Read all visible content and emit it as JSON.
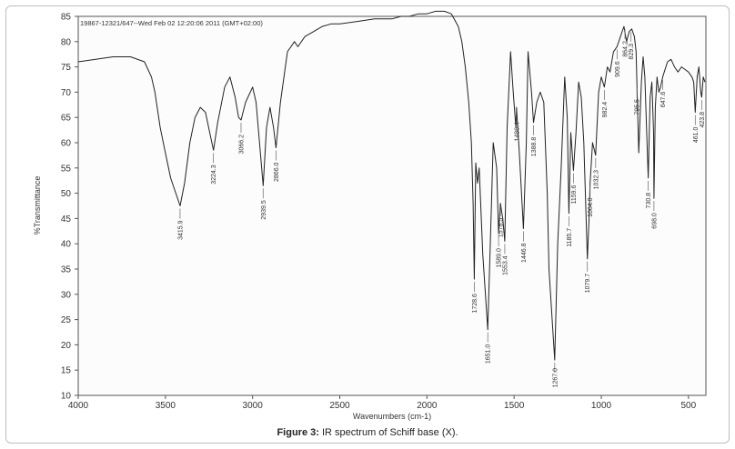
{
  "chart_data": {
    "type": "line",
    "header": "19867-12321/647--Wed Feb 02 12:20:06 2011 (GMT+02:00)",
    "xlabel": "Wavenumbers (cm-1)",
    "ylabel": "%Transmittance",
    "xlim": [
      4000,
      400
    ],
    "ylim": [
      10,
      85
    ],
    "x_ticks": [
      4000,
      3500,
      3000,
      2500,
      2000,
      1500,
      1000,
      500
    ],
    "y_ticks": [
      10,
      15,
      20,
      25,
      30,
      35,
      40,
      45,
      50,
      55,
      60,
      65,
      70,
      75,
      80,
      85
    ],
    "grid": false,
    "series": [
      {
        "x": [
          4000,
          3900,
          3800,
          3700,
          3620,
          3580,
          3560,
          3530,
          3500,
          3470,
          3440,
          3415.9,
          3390,
          3360,
          3330,
          3300,
          3270,
          3240,
          3224.3,
          3200,
          3160,
          3130,
          3100,
          3080,
          3066.2,
          3040,
          3000,
          2980,
          2960,
          2939.5,
          2920,
          2900,
          2880,
          2866.0,
          2840,
          2800,
          2760,
          2740,
          2700,
          2650,
          2600,
          2550,
          2500,
          2400,
          2300,
          2200,
          2150,
          2100,
          2050,
          2000,
          1950,
          1900,
          1860,
          1820,
          1800,
          1780,
          1760,
          1745,
          1735,
          1728.6,
          1720,
          1710,
          1700,
          1680,
          1651.0,
          1630,
          1620,
          1600,
          1589.0,
          1578.5,
          1565,
          1553.4,
          1540,
          1520,
          1505,
          1490,
          1486.4,
          1470,
          1446.8,
          1430,
          1420,
          1400,
          1388.8,
          1370,
          1350,
          1330,
          1310,
          1300,
          1267.0,
          1250,
          1230,
          1210,
          1195,
          1185.7,
          1175,
          1159.6,
          1145,
          1130,
          1115,
          1100,
          1079.7,
          1070,
          1064.0,
          1050,
          1032.3,
          1015,
          1000,
          982.4,
          965,
          950,
          930,
          909.6,
          890,
          870,
          855,
          840,
          825,
          810,
          800,
          795.5,
          785,
          770,
          760,
          750,
          730.8,
          720,
          710,
          700,
          698.0,
          690,
          680,
          670,
          660,
          647.6,
          620,
          600,
          580,
          560,
          540,
          520,
          500,
          480,
          470,
          461.0,
          450,
          440,
          430,
          423.8,
          415,
          405
        ],
        "y": [
          76,
          76.5,
          77,
          77,
          76,
          73,
          70,
          63,
          58,
          53,
          50,
          47.5,
          52,
          60,
          65,
          67,
          66,
          61,
          58.5,
          64,
          71,
          73,
          69,
          65,
          64.5,
          68,
          71,
          68,
          60,
          51.5,
          63,
          67,
          63,
          59,
          68,
          78,
          80,
          79,
          81,
          82,
          83,
          83.5,
          83.5,
          84,
          84.5,
          84.5,
          85,
          85,
          85.5,
          85.5,
          86,
          86,
          85.5,
          83,
          80,
          75,
          68,
          60,
          48,
          33,
          56,
          52,
          55,
          38,
          23,
          48,
          60,
          55,
          42,
          48,
          45,
          40.5,
          63,
          78,
          70,
          63,
          67,
          58,
          43,
          60,
          78,
          70,
          64,
          68,
          70,
          68,
          50,
          35,
          17,
          40,
          55,
          73,
          65,
          46,
          62,
          54.5,
          62,
          72,
          69,
          60,
          37,
          45,
          52,
          60,
          57.5,
          70,
          73,
          71,
          75,
          74,
          78,
          79,
          81,
          83,
          80,
          82,
          82.5,
          81,
          78,
          71.5,
          58,
          72,
          77,
          73,
          53,
          69,
          72,
          62,
          49,
          67,
          73,
          70,
          71,
          73,
          76,
          76.5,
          75,
          74,
          75,
          74.5,
          74,
          73,
          72,
          66,
          73,
          75,
          70,
          69,
          73,
          72
        ]
      }
    ],
    "peak_labels": [
      {
        "x": 3415.9,
        "text": "3415.9"
      },
      {
        "x": 3224.3,
        "text": "3224.3"
      },
      {
        "x": 3066.2,
        "text": "3066.2"
      },
      {
        "x": 2939.5,
        "text": "2939.5"
      },
      {
        "x": 2866.0,
        "text": "2866.0"
      },
      {
        "x": 1728.6,
        "text": "1728.6"
      },
      {
        "x": 1651.0,
        "text": "1651.0"
      },
      {
        "x": 1589.0,
        "text": "1589.0"
      },
      {
        "x": 1578.5,
        "text": "1578.5"
      },
      {
        "x": 1553.4,
        "text": "1553.4"
      },
      {
        "x": 1486.4,
        "text": "1486.4"
      },
      {
        "x": 1446.8,
        "text": "1446.8"
      },
      {
        "x": 1388.8,
        "text": "1388.8"
      },
      {
        "x": 1267.0,
        "text": "1267.0"
      },
      {
        "x": 1185.7,
        "text": "1185.7"
      },
      {
        "x": 1159.6,
        "text": "1159.6"
      },
      {
        "x": 1079.7,
        "text": "1079.7"
      },
      {
        "x": 1064.0,
        "text": "1064.0"
      },
      {
        "x": 1032.3,
        "text": "1032.3"
      },
      {
        "x": 982.4,
        "text": "982.4"
      },
      {
        "x": 909.6,
        "text": "909.6"
      },
      {
        "x": 864.2,
        "text": "864.2"
      },
      {
        "x": 829.3,
        "text": "829.3"
      },
      {
        "x": 795.5,
        "text": "795.5"
      },
      {
        "x": 730.8,
        "text": "730.8"
      },
      {
        "x": 698.0,
        "text": "698.0"
      },
      {
        "x": 647.6,
        "text": "647.6"
      },
      {
        "x": 461.0,
        "text": "461.0"
      },
      {
        "x": 423.8,
        "text": "423.8"
      }
    ]
  },
  "caption": {
    "label": "Figure 3:",
    "text": " IR spectrum of Schiff base (X)."
  }
}
